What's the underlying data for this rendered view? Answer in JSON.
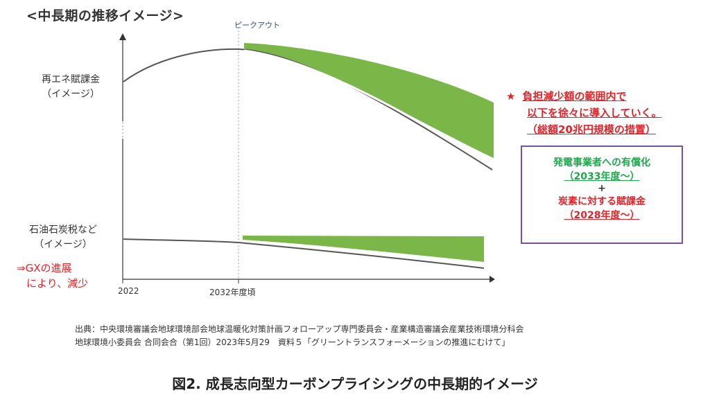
{
  "header": {
    "section_title": "<中長期の推移イメージ>",
    "peak_label": "ピークアウト"
  },
  "chart_data": {
    "type": "area",
    "x_ticks": [
      "2022",
      "2032年度頃"
    ],
    "peak_marker": "ピークアウト",
    "series": [
      {
        "name": "再エネ賦課金（イメージ）",
        "label_lines": [
          "再エネ賦課金",
          "（イメージ）"
        ],
        "x": [
          0,
          0.1,
          0.2,
          0.3,
          0.4,
          0.5,
          0.6,
          0.7,
          0.8,
          0.9,
          1.0
        ],
        "upper": [
          0.55,
          0.68,
          0.77,
          0.82,
          0.855,
          0.86,
          0.86,
          0.85,
          0.83,
          0.8,
          0.77
        ],
        "lower_curve": [
          null,
          null,
          null,
          null,
          null,
          0.86,
          0.83,
          0.78,
          0.7,
          0.6,
          0.48
        ]
      },
      {
        "name": "石油石炭税など（イメージ）",
        "label_lines": [
          "石油石炭税など",
          "（イメージ）"
        ],
        "upper": "flat",
        "lower": "declining"
      }
    ],
    "fill_color": "#7ab648",
    "line_color": "#555555"
  },
  "annotations": {
    "gx_note": [
      "⇒GXの進展",
      "により、減少"
    ],
    "red_note": {
      "star": "★",
      "lines": [
        "負担減少額の範囲内で",
        "以下を徐々に導入していく。",
        "（総額20兆円規模の措置）"
      ]
    },
    "box": {
      "line1": "発電事業者への有償化",
      "line2": "（2033年度～）",
      "plus": "+",
      "line3": "炭素に対する賦課金",
      "line4": "（2028年度～）"
    }
  },
  "footer": {
    "source_line1": "出典：中央環境審議会地球環境部会地球温暖化対策計画フォローアップ専門委員会・産業構造審議会産業技術環境分科会",
    "source_line2": "地球環境小委員会 合同会合（第1回）2023年5月29　資料５「グリーントランスフォーメーションの推進にむけて」",
    "figure_caption": "図2.  成長志向型カーボンプライシングの中長期的イメージ"
  },
  "colors": {
    "accent_red": "#e0252a",
    "accent_green": "#1ea84b",
    "fill_green": "#7ab648",
    "box_border": "#7b4fa0"
  }
}
